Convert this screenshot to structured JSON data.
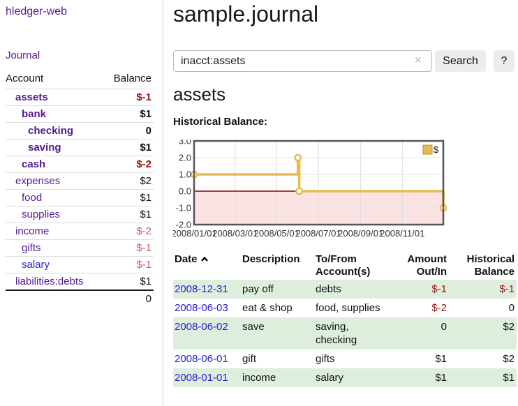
{
  "app": {
    "brand": "hledger-web"
  },
  "colors": {
    "purple_link": "#551a8b",
    "blue_link": "#2323d6",
    "negative": "#9c1414",
    "negative_soft": "#c4605f",
    "row_green": "#ddeedd",
    "button_gray": "#ececec",
    "chart_line": "#e8bc4c",
    "chart_negative_region": "#fbe3e3",
    "chart_zero_line": "#8b0000"
  },
  "sidebar": {
    "journal_label": "Journal",
    "accounts_table": {
      "account_header": "Account",
      "balance_header": "Balance",
      "rows": [
        {
          "account": "assets",
          "balance": "$-1"
        },
        {
          "account": "bank",
          "balance": "$1"
        },
        {
          "account": "checking",
          "balance": "0"
        },
        {
          "account": "saving",
          "balance": "$1"
        },
        {
          "account": "cash",
          "balance": "$-2"
        },
        {
          "account": "expenses",
          "balance": "$2"
        },
        {
          "account": "food",
          "balance": "$1"
        },
        {
          "account": "supplies",
          "balance": "$1"
        },
        {
          "account": "income",
          "balance": "$-2"
        },
        {
          "account": "gifts",
          "balance": "$-1"
        },
        {
          "account": "salary",
          "balance": "$-1"
        },
        {
          "account": "liabilities:debts",
          "balance": "$1"
        }
      ],
      "total": "0"
    }
  },
  "header": {
    "title": "sample.journal"
  },
  "search": {
    "value": "inacct:assets",
    "clear_icon": "×",
    "button_label": "Search",
    "help_label": "?"
  },
  "account_page": {
    "title": "assets",
    "chart_label": "Historical Balance:"
  },
  "chart_data": {
    "type": "line",
    "step": true,
    "series": [
      {
        "name": "$",
        "points": [
          [
            "2008-01-01",
            1.0
          ],
          [
            "2008-06-01",
            2.0
          ],
          [
            "2008-06-03",
            0.0
          ],
          [
            "2008-12-31",
            -1.0
          ]
        ]
      }
    ],
    "x_range": [
      "2008-01-01",
      "2008-12-31"
    ],
    "ylim": [
      -2.0,
      3.0
    ],
    "yticks": [
      "3.0",
      "2.0",
      "1.0",
      "0.0",
      "-1.0",
      "-2.0"
    ],
    "xticks": [
      "2008/01/01",
      "2008/03/01",
      "2008/05/01",
      "2008/07/01",
      "2008/09/01",
      "2008/11/01"
    ],
    "legend_position": "top-right",
    "grid": true,
    "colors": {
      "line": "#e8bc4c",
      "negative_region": "#fbe3e3",
      "zero_line": "#8b0000"
    }
  },
  "register": {
    "columns": {
      "date": "Date",
      "description": "Description",
      "tofrom_line1": "To/From",
      "tofrom_line2": "Account(s)",
      "amount_line1": "Amount",
      "amount_line2": "Out/In",
      "balance_line1": "Historical",
      "balance_line2": "Balance"
    },
    "rows": [
      {
        "date": "2008-12-31",
        "description": "pay off",
        "accounts": "debts",
        "amount": "$-1",
        "balance": "$-1"
      },
      {
        "date": "2008-06-03",
        "description": "eat & shop",
        "accounts": "food, supplies",
        "amount": "$-2",
        "balance": "0"
      },
      {
        "date": "2008-06-02",
        "description": "save",
        "accounts": "saving,\nchecking",
        "amount": "0",
        "balance": "$2"
      },
      {
        "date": "2008-06-01",
        "description": "gift",
        "accounts": "gifts",
        "amount": "$1",
        "balance": "$2"
      },
      {
        "date": "2008-01-01",
        "description": "income",
        "accounts": "salary",
        "amount": "$1",
        "balance": "$1"
      }
    ]
  }
}
